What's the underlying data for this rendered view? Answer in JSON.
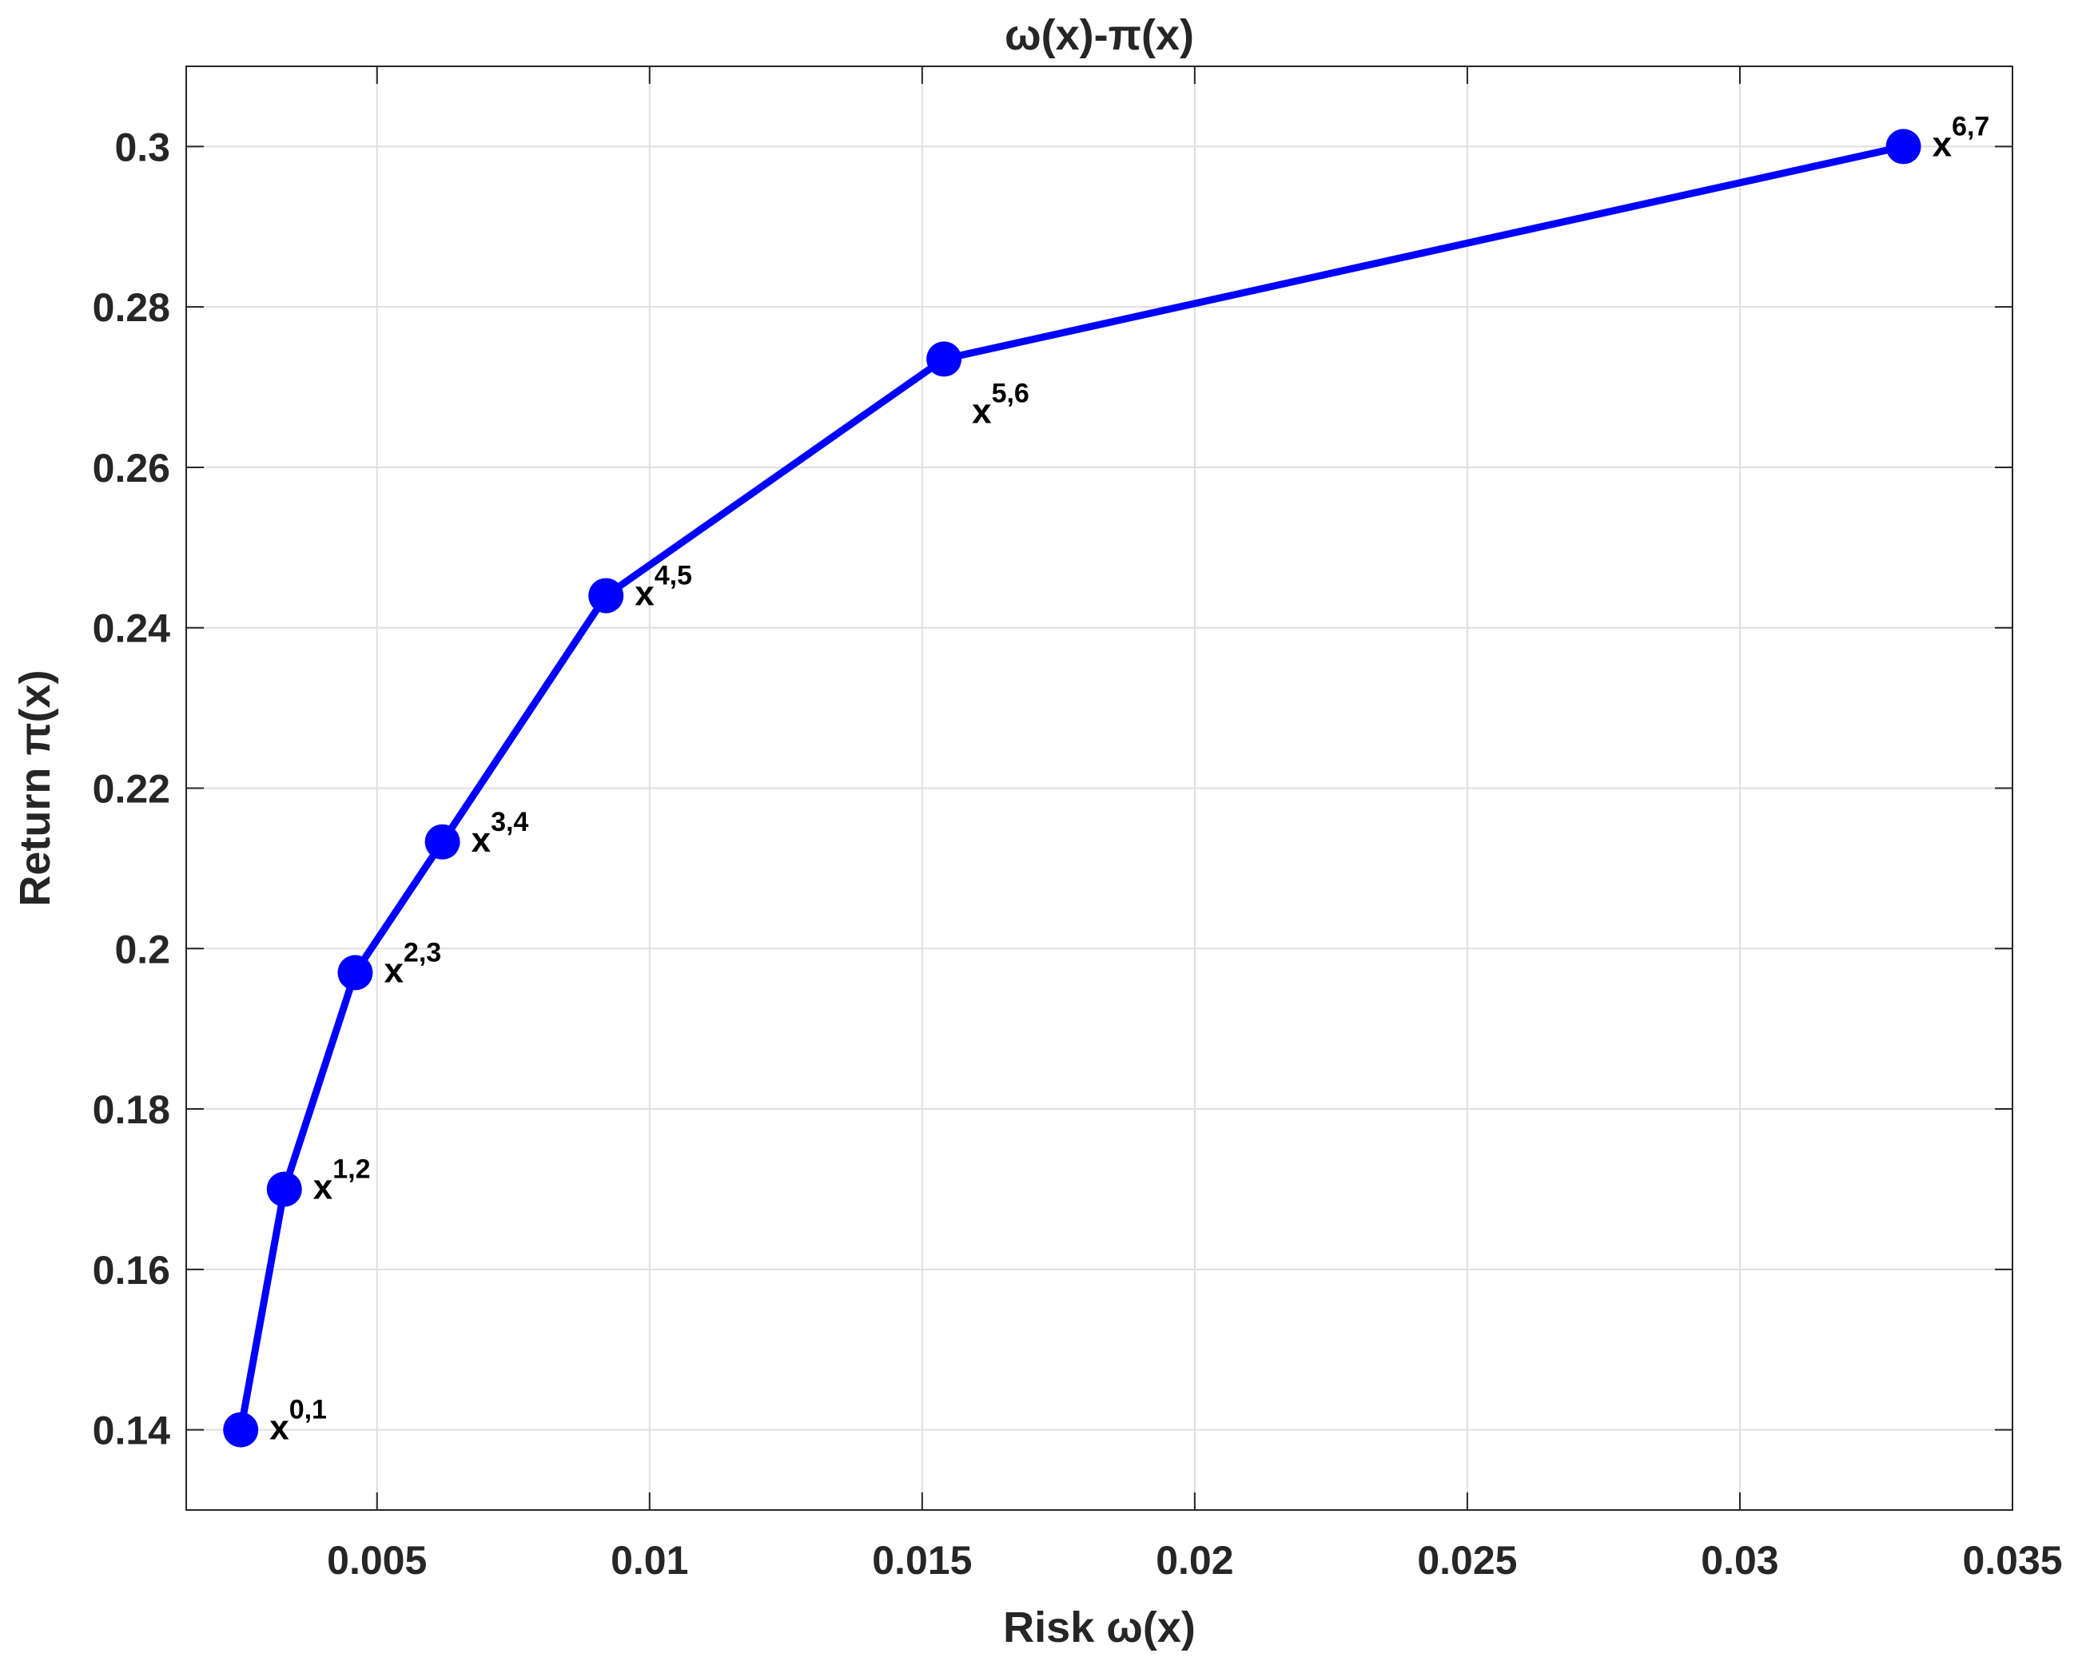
{
  "chart_data": {
    "type": "line",
    "title": "ω(x)-π(x)",
    "xlabel": "Risk ω(x)",
    "ylabel": "Return π(x)",
    "xlim": [
      0.0015,
      0.035
    ],
    "ylim": [
      0.13,
      0.31
    ],
    "xticks": [
      0.005,
      0.01,
      0.015,
      0.02,
      0.025,
      0.03,
      0.035
    ],
    "xtick_labels": [
      "0.005",
      "0.01",
      "0.015",
      "0.02",
      "0.025",
      "0.03",
      "0.035"
    ],
    "yticks": [
      0.14,
      0.16,
      0.18,
      0.2,
      0.22,
      0.24,
      0.26,
      0.28,
      0.3
    ],
    "ytick_labels": [
      "0.14",
      "0.16",
      "0.18",
      "0.2",
      "0.22",
      "0.24",
      "0.26",
      "0.28",
      "0.3"
    ],
    "grid": true,
    "series": [
      {
        "color": "#0000ff",
        "points": [
          {
            "x": 0.0025,
            "y": 0.14,
            "label": "x",
            "sup": "0,1",
            "label_pos": "right"
          },
          {
            "x": 0.0033,
            "y": 0.17,
            "label": "x",
            "sup": "1,2",
            "label_pos": "right"
          },
          {
            "x": 0.0046,
            "y": 0.197,
            "label": "x",
            "sup": "2,3",
            "label_pos": "right"
          },
          {
            "x": 0.0062,
            "y": 0.2133,
            "label": "x",
            "sup": "3,4",
            "label_pos": "right"
          },
          {
            "x": 0.0092,
            "y": 0.244,
            "label": "x",
            "sup": "4,5",
            "label_pos": "right"
          },
          {
            "x": 0.0154,
            "y": 0.2735,
            "label": "x",
            "sup": "5,6",
            "label_pos": "below-right"
          },
          {
            "x": 0.033,
            "y": 0.3,
            "label": "x",
            "sup": "6,7",
            "label_pos": "right"
          }
        ]
      }
    ]
  }
}
